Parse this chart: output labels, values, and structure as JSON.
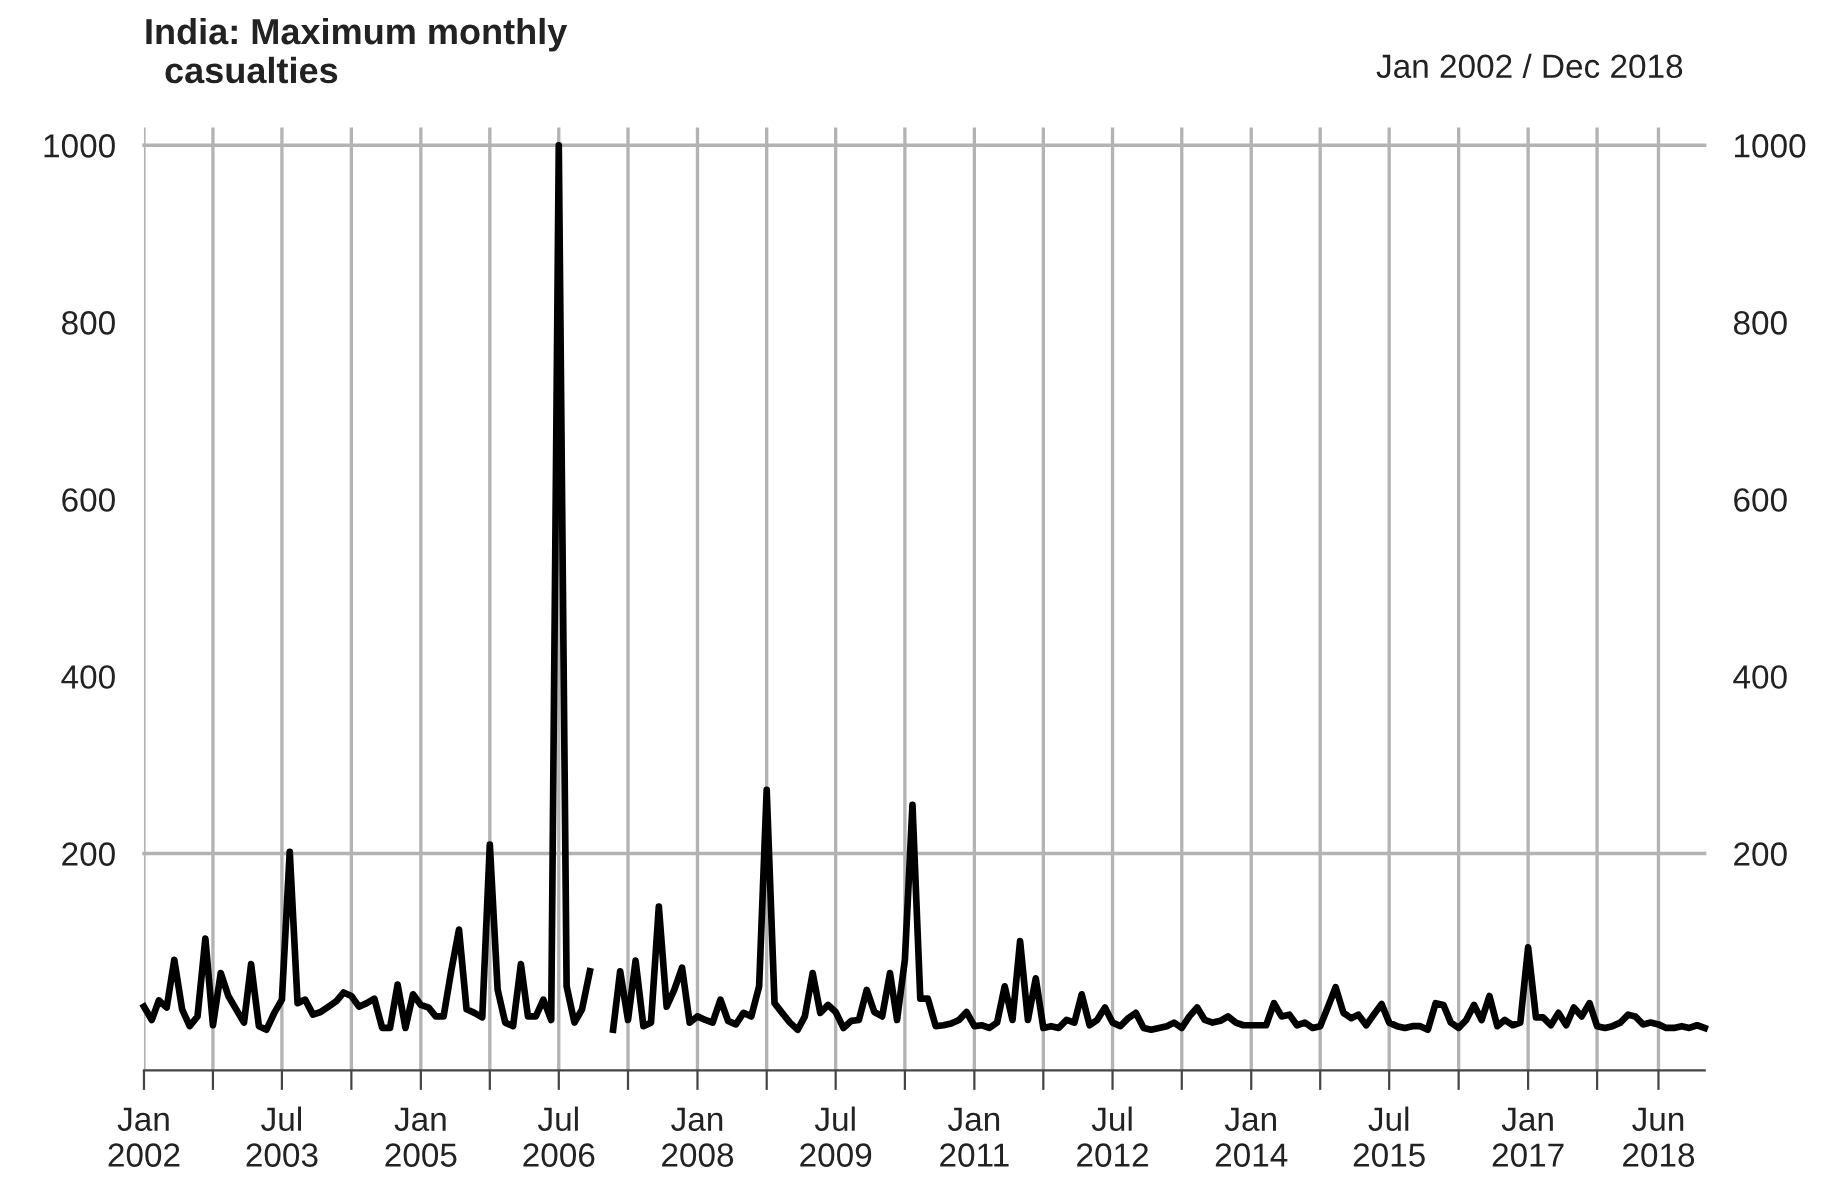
{
  "chart_data": {
    "type": "line",
    "title": "India: Maximum monthly\n  casualties",
    "subtitle": "Jan 2002 / Dec 2018",
    "x": [
      "2002-01",
      "2002-02",
      "2002-03",
      "2002-04",
      "2002-05",
      "2002-06",
      "2002-07",
      "2002-08",
      "2002-09",
      "2002-10",
      "2002-11",
      "2002-12",
      "2003-01",
      "2003-02",
      "2003-03",
      "2003-04",
      "2003-05",
      "2003-06",
      "2003-07",
      "2003-08",
      "2003-09",
      "2003-10",
      "2003-11",
      "2003-12",
      "2004-01",
      "2004-02",
      "2004-03",
      "2004-04",
      "2004-05",
      "2004-06",
      "2004-07",
      "2004-08",
      "2004-09",
      "2004-10",
      "2004-11",
      "2004-12",
      "2005-01",
      "2005-02",
      "2005-03",
      "2005-04",
      "2005-05",
      "2005-06",
      "2005-07",
      "2005-08",
      "2005-09",
      "2005-10",
      "2005-11",
      "2005-12",
      "2006-01",
      "2006-02",
      "2006-03",
      "2006-04",
      "2006-05",
      "2006-06",
      "2006-07",
      "2006-08",
      "2006-09",
      "2006-10",
      "2006-11",
      "2006-12",
      "2007-01",
      "2007-02",
      "2007-03",
      "2007-04",
      "2007-05",
      "2007-06",
      "2007-07",
      "2007-08",
      "2007-09",
      "2007-10",
      "2007-11",
      "2007-12",
      "2008-01",
      "2008-02",
      "2008-03",
      "2008-04",
      "2008-05",
      "2008-06",
      "2008-07",
      "2008-08",
      "2008-09",
      "2008-10",
      "2008-11",
      "2008-12",
      "2009-01",
      "2009-02",
      "2009-03",
      "2009-04",
      "2009-05",
      "2009-06",
      "2009-07",
      "2009-08",
      "2009-09",
      "2009-10",
      "2009-11",
      "2009-12",
      "2010-01",
      "2010-02",
      "2010-03",
      "2010-04",
      "2010-05",
      "2010-06",
      "2010-07",
      "2010-08",
      "2010-09",
      "2010-10",
      "2010-11",
      "2010-12",
      "2011-01",
      "2011-02",
      "2011-03",
      "2011-04",
      "2011-05",
      "2011-06",
      "2011-07",
      "2011-08",
      "2011-09",
      "2011-10",
      "2011-11",
      "2011-12",
      "2012-01",
      "2012-02",
      "2012-03",
      "2012-04",
      "2012-05",
      "2012-06",
      "2012-07",
      "2012-08",
      "2012-09",
      "2012-10",
      "2012-11",
      "2012-12",
      "2013-01",
      "2013-02",
      "2013-03",
      "2013-04",
      "2013-05",
      "2013-06",
      "2013-07",
      "2013-08",
      "2013-09",
      "2013-10",
      "2013-11",
      "2013-12",
      "2014-01",
      "2014-02",
      "2014-03",
      "2014-04",
      "2014-05",
      "2014-06",
      "2014-07",
      "2014-08",
      "2014-09",
      "2014-10",
      "2014-11",
      "2014-12",
      "2015-01",
      "2015-02",
      "2015-03",
      "2015-04",
      "2015-05",
      "2015-06",
      "2015-07",
      "2015-08",
      "2015-09",
      "2015-10",
      "2015-11",
      "2015-12",
      "2016-01",
      "2016-02",
      "2016-03",
      "2016-04",
      "2016-05",
      "2016-06",
      "2016-07",
      "2016-08",
      "2016-09",
      "2016-10",
      "2016-11",
      "2016-12",
      "2017-01",
      "2017-02",
      "2017-03",
      "2017-04",
      "2017-05",
      "2017-06",
      "2017-07",
      "2017-08",
      "2017-09",
      "2017-10",
      "2017-11",
      "2017-12",
      "2018-01",
      "2018-02",
      "2018-03",
      "2018-04",
      "2018-05",
      "2018-06",
      "2018-07",
      "2018-08",
      "2018-09",
      "2018-10",
      "2018-11",
      "2018-12"
    ],
    "series": [
      {
        "color": "#000000",
        "values": [
          27,
          12,
          34,
          26,
          80,
          24,
          5,
          16,
          104,
          6,
          65,
          39,
          24,
          9,
          75,
          5,
          1,
          20,
          35,
          202,
          31,
          35,
          18,
          21,
          27,
          33,
          43,
          39,
          27,
          31,
          36,
          3,
          3,
          52,
          3,
          41,
          29,
          26,
          16,
          16,
          67,
          114,
          24,
          20,
          15,
          210,
          46,
          9,
          5,
          75,
          16,
          16,
          35,
          12,
          1000,
          50,
          9,
          24,
          67,
          null,
          null,
          1,
          67,
          12,
          79,
          5,
          9,
          140,
          27,
          46,
          71,
          9,
          16,
          12,
          9,
          35,
          11,
          7,
          20,
          16,
          50,
          272,
          31,
          20,
          9,
          1,
          16,
          65,
          20,
          29,
          21,
          3,
          11,
          12,
          46,
          21,
          16,
          65,
          12,
          80,
          255,
          36,
          36,
          5,
          6,
          8,
          12,
          21,
          5,
          6,
          3,
          9,
          50,
          12,
          101,
          12,
          59,
          3,
          5,
          3,
          12,
          9,
          41,
          6,
          12,
          26,
          9,
          5,
          14,
          20,
          3,
          1,
          3,
          5,
          9,
          3,
          16,
          26,
          12,
          9,
          11,
          16,
          9,
          6,
          6,
          6,
          6,
          31,
          16,
          18,
          6,
          9,
          3,
          5,
          27,
          49,
          20,
          14,
          18,
          6,
          18,
          30,
          9,
          5,
          3,
          5,
          5,
          1,
          31,
          29,
          9,
          3,
          12,
          29,
          12,
          39,
          5,
          12,
          6,
          9,
          94,
          15,
          15,
          6,
          20,
          6,
          26,
          16,
          31,
          5,
          3,
          5,
          9,
          18,
          16,
          7,
          9,
          7,
          3,
          3,
          5,
          3,
          6,
          3
        ]
      }
    ],
    "xlim": [
      "2002-01",
      "2018-12"
    ],
    "xticks": [
      {
        "value": "2002-01",
        "label": "Jan\n2002"
      },
      {
        "value": "2002-10",
        "label": null
      },
      {
        "value": "2003-07",
        "label": "Jul\n2003"
      },
      {
        "value": "2004-04",
        "label": null
      },
      {
        "value": "2005-01",
        "label": "Jan\n2005"
      },
      {
        "value": "2005-10",
        "label": null
      },
      {
        "value": "2006-07",
        "label": "Jul\n2006"
      },
      {
        "value": "2007-04",
        "label": null
      },
      {
        "value": "2008-01",
        "label": "Jan\n2008"
      },
      {
        "value": "2008-10",
        "label": null
      },
      {
        "value": "2009-07",
        "label": "Jul\n2009"
      },
      {
        "value": "2010-04",
        "label": null
      },
      {
        "value": "2011-01",
        "label": "Jan\n2011"
      },
      {
        "value": "2011-10",
        "label": null
      },
      {
        "value": "2012-07",
        "label": "Jul\n2012"
      },
      {
        "value": "2013-04",
        "label": null
      },
      {
        "value": "2014-01",
        "label": "Jan\n2014"
      },
      {
        "value": "2014-10",
        "label": null
      },
      {
        "value": "2015-07",
        "label": "Jul\n2015"
      },
      {
        "value": "2016-04",
        "label": null
      },
      {
        "value": "2017-01",
        "label": "Jan\n2017"
      },
      {
        "value": "2017-10",
        "label": null
      },
      {
        "value": "2018-06",
        "label": "Jun\n2018"
      }
    ],
    "ylim": [
      -45,
      1020
    ],
    "yticks": [
      200,
      400,
      600,
      800,
      1000
    ],
    "y2lim": [
      -45,
      1020
    ],
    "y2ticks": [
      200,
      400,
      600,
      800,
      1000
    ],
    "grid": "x",
    "ref_lines": [
      {
        "axis": "y",
        "value": 200,
        "color": "#b3b3b3"
      },
      {
        "axis": "y",
        "value": 1000,
        "color": "#b3b3b3"
      }
    ],
    "line_style": "solid",
    "marker": "none"
  }
}
